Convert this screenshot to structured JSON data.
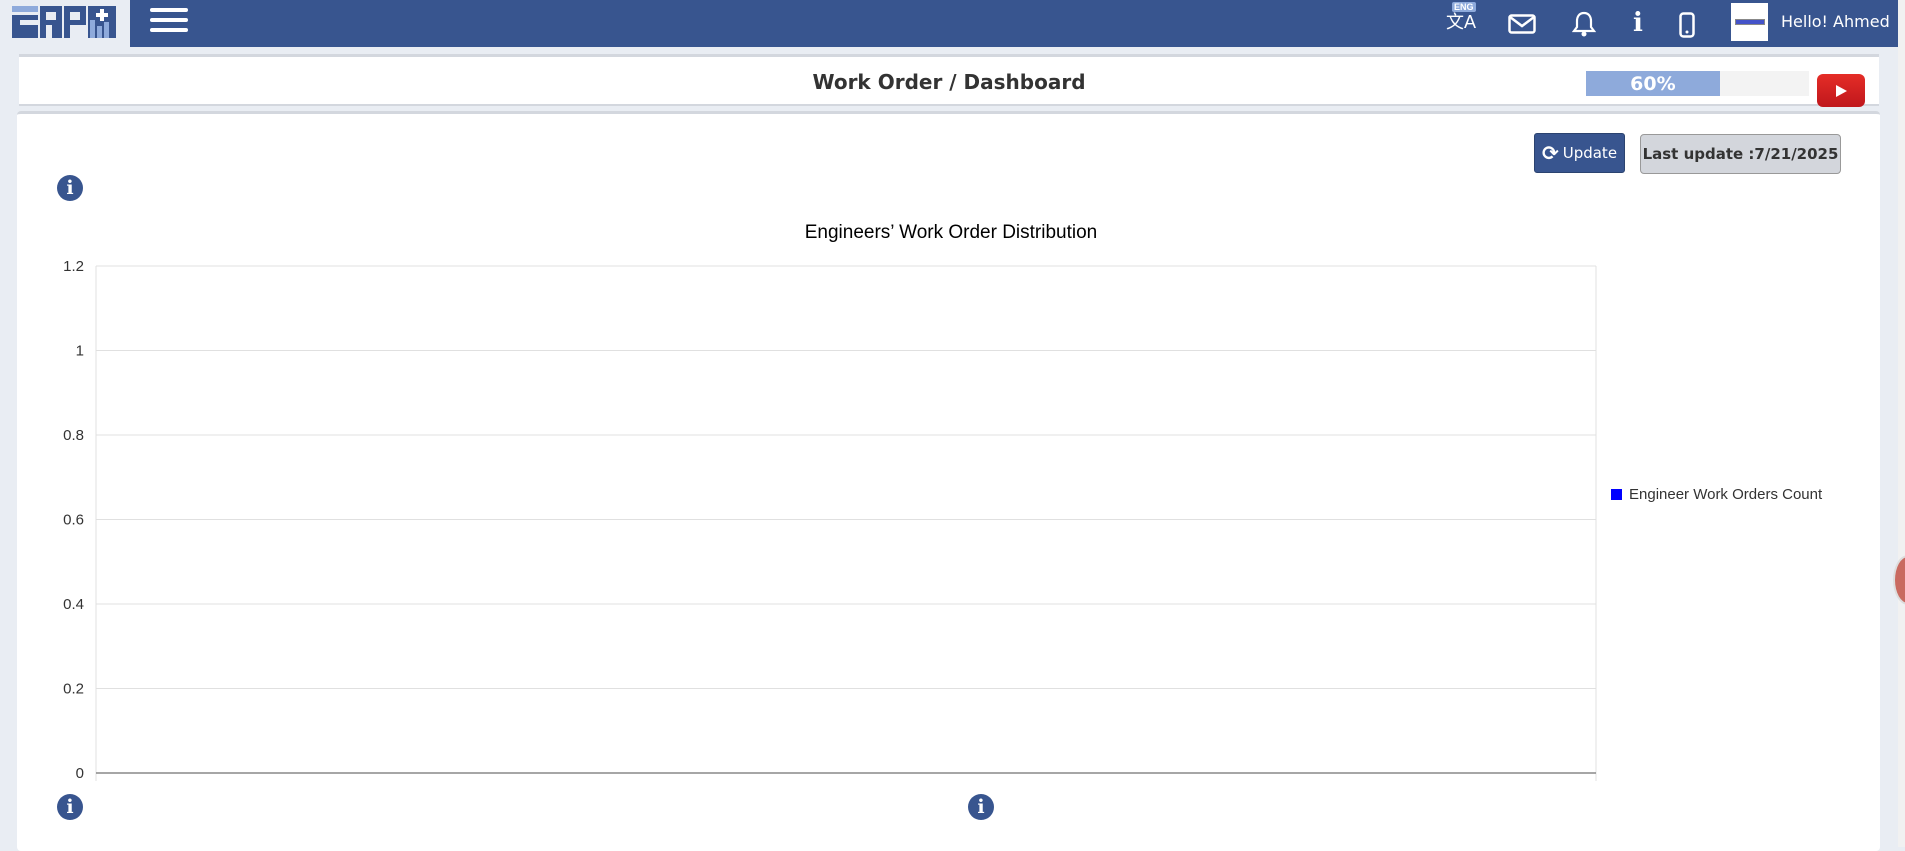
{
  "header": {
    "logo_text": "ERP+",
    "lang_badge": "ENG",
    "greeting": "Hello! Ahmed",
    "icons": [
      "translate-icon",
      "mail-icon",
      "bell-icon",
      "info-icon",
      "mobile-icon"
    ]
  },
  "titlebar": {
    "title": "Work Order / Dashboard",
    "progress_label": "60%",
    "progress": 60
  },
  "toolbar": {
    "update_label": "Update",
    "last_update": "Last update :7/21/2025"
  },
  "colors": {
    "brand": "#38558f",
    "progress": "#8eaadb",
    "series": "#0000ff",
    "youtube": "#e52d27"
  },
  "chart_data": {
    "type": "bar",
    "title": "Engineers’ Work Order Distribution",
    "categories": [],
    "series": [
      {
        "name": "Engineer Work Orders Count",
        "values": [],
        "color": "#0000ff"
      }
    ],
    "ylim": [
      0,
      1.2
    ],
    "yticks": [
      "0",
      "0.2",
      "0.4",
      "0.6",
      "0.8",
      "1",
      "1.2"
    ],
    "grid": true,
    "legend": "right"
  }
}
